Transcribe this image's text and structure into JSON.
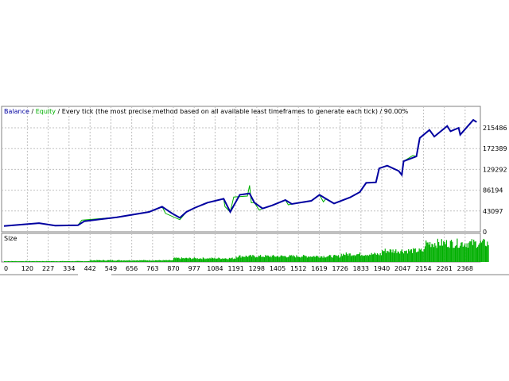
{
  "header": {
    "balance": "Balance",
    "sep1": " / ",
    "equity": "Equity",
    "rest": " / Every tick (the most precise method based on all available least timeframes to generate each tick) / 90.00%"
  },
  "colors": {
    "balance": "#0000a0",
    "equity": "#00b000",
    "size": "#00b000",
    "grid": "#c0c0c0"
  },
  "chart_data": {
    "type": "line",
    "title": "Balance / Equity / Every tick (the most precise method based on all available least timeframes to generate each tick) / 90.00%",
    "xlim": [
      0,
      2490
    ],
    "ylim": [
      0,
      259000
    ],
    "grid": true,
    "x_ticks": [
      0,
      120,
      227,
      334,
      442,
      549,
      656,
      763,
      870,
      977,
      1084,
      1191,
      1298,
      1405,
      1512,
      1619,
      1726,
      1833,
      1940,
      2047,
      2154,
      2261,
      2368
    ],
    "y_ticks": [
      0,
      43097,
      86194,
      129292,
      172389,
      215486
    ],
    "series": [
      {
        "name": "Balance",
        "points": [
          [
            0,
            12000
          ],
          [
            180,
            18000
          ],
          [
            263,
            12600
          ],
          [
            380,
            13700
          ],
          [
            413,
            21900
          ],
          [
            580,
            30100
          ],
          [
            745,
            41100
          ],
          [
            812,
            52000
          ],
          [
            862,
            38400
          ],
          [
            903,
            29000
          ],
          [
            937,
            41100
          ],
          [
            978,
            49300
          ],
          [
            1045,
            60300
          ],
          [
            1128,
            68500
          ],
          [
            1162,
            41100
          ],
          [
            1211,
            76700
          ],
          [
            1261,
            79500
          ],
          [
            1286,
            60300
          ],
          [
            1328,
            48200
          ],
          [
            1378,
            54800
          ],
          [
            1445,
            65800
          ],
          [
            1478,
            57500
          ],
          [
            1578,
            64100
          ],
          [
            1620,
            76700
          ],
          [
            1653,
            68500
          ],
          [
            1695,
            58600
          ],
          [
            1777,
            71200
          ],
          [
            1827,
            82200
          ],
          [
            1860,
            101400
          ],
          [
            1910,
            102500
          ],
          [
            1927,
            131500
          ],
          [
            1968,
            137000
          ],
          [
            2027,
            126000
          ],
          [
            2043,
            117800
          ],
          [
            2052,
            146300
          ],
          [
            2118,
            156200
          ],
          [
            2135,
            194500
          ],
          [
            2185,
            211000
          ],
          [
            2210,
            197300
          ],
          [
            2276,
            219200
          ],
          [
            2293,
            208200
          ],
          [
            2335,
            215400
          ],
          [
            2343,
            201100
          ],
          [
            2410,
            231800
          ],
          [
            2427,
            227400
          ]
        ]
      },
      {
        "name": "Equity",
        "points": [
          [
            0,
            12000
          ],
          [
            180,
            18000
          ],
          [
            263,
            12600
          ],
          [
            380,
            13700
          ],
          [
            400,
            24000
          ],
          [
            580,
            30100
          ],
          [
            745,
            41100
          ],
          [
            812,
            52000
          ],
          [
            830,
            38000
          ],
          [
            903,
            25000
          ],
          [
            937,
            41100
          ],
          [
            978,
            49300
          ],
          [
            1045,
            60300
          ],
          [
            1128,
            68500
          ],
          [
            1135,
            52000
          ],
          [
            1162,
            41100
          ],
          [
            1180,
            72000
          ],
          [
            1250,
            74000
          ],
          [
            1261,
            96000
          ],
          [
            1270,
            60000
          ],
          [
            1286,
            60300
          ],
          [
            1310,
            45000
          ],
          [
            1328,
            48200
          ],
          [
            1378,
            54800
          ],
          [
            1445,
            65800
          ],
          [
            1460,
            56000
          ],
          [
            1478,
            57500
          ],
          [
            1578,
            64100
          ],
          [
            1620,
            76700
          ],
          [
            1640,
            62000
          ],
          [
            1653,
            68500
          ],
          [
            1695,
            58600
          ],
          [
            1777,
            71200
          ],
          [
            1827,
            82200
          ],
          [
            1860,
            101400
          ],
          [
            1910,
            102500
          ],
          [
            1920,
            118000
          ],
          [
            1927,
            131500
          ],
          [
            1968,
            137000
          ],
          [
            2027,
            126000
          ],
          [
            2043,
            117800
          ],
          [
            2052,
            146300
          ],
          [
            2100,
            158000
          ],
          [
            2118,
            156200
          ],
          [
            2135,
            194500
          ],
          [
            2185,
            211000
          ],
          [
            2210,
            197300
          ],
          [
            2276,
            219200
          ],
          [
            2293,
            208200
          ],
          [
            2335,
            215400
          ],
          [
            2343,
            201100
          ],
          [
            2410,
            231800
          ],
          [
            2427,
            227400
          ]
        ]
      }
    ],
    "size_panel": {
      "label": "Size",
      "levels": [
        [
          0,
          0.04
        ],
        [
          440,
          0.08
        ],
        [
          870,
          0.18
        ],
        [
          1190,
          0.28
        ],
        [
          1730,
          0.38
        ],
        [
          1940,
          0.55
        ],
        [
          2160,
          0.92
        ],
        [
          2490,
          0.95
        ]
      ]
    }
  }
}
